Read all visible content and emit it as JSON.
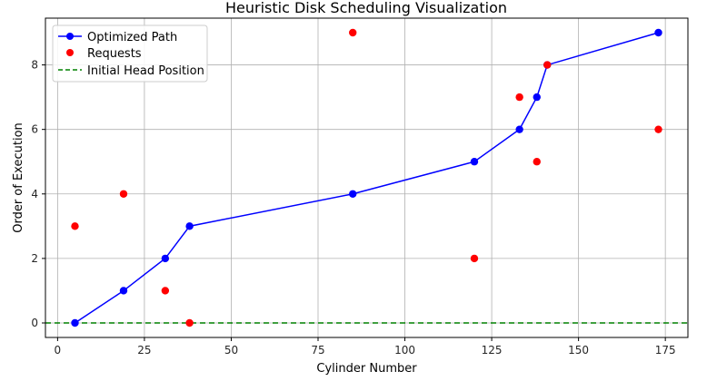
{
  "chart_data": {
    "type": "line",
    "title": "Heuristic Disk Scheduling Visualization",
    "xlabel": "Cylinder Number",
    "ylabel": "Order of Execution",
    "xlim": [
      -3.5,
      181.5
    ],
    "ylim": [
      -0.45,
      9.45
    ],
    "x_ticks": [
      0,
      25,
      50,
      75,
      100,
      125,
      150,
      175
    ],
    "y_ticks": [
      0,
      2,
      4,
      6,
      8
    ],
    "grid": true,
    "legend_position": "top-left",
    "series": [
      {
        "name": "Optimized Path",
        "kind": "line-markers",
        "color": "#0000ff",
        "x": [
          5,
          19,
          31,
          38,
          85,
          120,
          133,
          138,
          141,
          173
        ],
        "y": [
          0,
          1,
          2,
          3,
          4,
          5,
          6,
          7,
          8,
          9
        ]
      },
      {
        "name": "Requests",
        "kind": "scatter",
        "color": "#ff0000",
        "x": [
          38,
          120,
          5,
          19,
          138,
          173,
          133,
          141,
          85,
          31
        ],
        "y": [
          0,
          2,
          3,
          4,
          5,
          6,
          7,
          8,
          9,
          1
        ]
      },
      {
        "name": "Initial Head Position",
        "kind": "hline",
        "color": "#008000",
        "y": 0
      }
    ]
  }
}
